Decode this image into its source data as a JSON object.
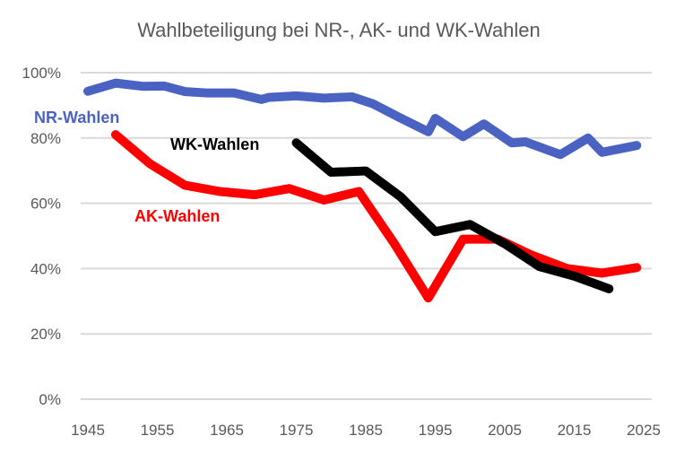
{
  "chart_data": {
    "type": "line",
    "title": "Wahlbeteiligung bei NR-, AK- und WK-Wahlen",
    "xlabel": "",
    "ylabel": "",
    "xlim": [
      1945,
      2025
    ],
    "ylim": [
      0,
      100
    ],
    "x_ticks": [
      "1945",
      "1955",
      "1965",
      "1975",
      "1985",
      "1995",
      "2005",
      "2015",
      "2025"
    ],
    "y_ticks": [
      "0%",
      "20%",
      "40%",
      "60%",
      "80%",
      "100%"
    ],
    "grid": true,
    "series": [
      {
        "name": "NR-Wahlen",
        "color": "#4a62c2",
        "x": [
          1945,
          1949,
          1953,
          1956,
          1959,
          1962,
          1966,
          1970,
          1971,
          1975,
          1979,
          1983,
          1986,
          1990,
          1994,
          1995,
          1999,
          2002,
          2006,
          2008,
          2013,
          2017,
          2019,
          2024
        ],
        "y": [
          94.3,
          96.8,
          95.8,
          95.9,
          94.2,
          93.8,
          93.8,
          91.8,
          92.4,
          92.9,
          92.2,
          92.6,
          90.5,
          86.1,
          81.9,
          86.0,
          80.4,
          84.3,
          78.5,
          78.8,
          74.9,
          80.0,
          75.6,
          77.7
        ]
      },
      {
        "name": "AK-Wahlen",
        "color": "#ff0000",
        "x": [
          1949,
          1954,
          1959,
          1964,
          1969,
          1974,
          1979,
          1984,
          1989,
          1994,
          1999,
          2004,
          2009,
          2014,
          2019,
          2024
        ],
        "y": [
          81.0,
          72.0,
          65.5,
          63.6,
          62.6,
          64.5,
          61.0,
          63.6,
          48.0,
          31.0,
          49.0,
          49.0,
          44.0,
          40.0,
          38.6,
          40.3
        ]
      },
      {
        "name": "WK-Wahlen",
        "color": "#000000",
        "x": [
          1975,
          1980,
          1985,
          1990,
          1995,
          2000,
          2005,
          2010,
          2015,
          2020
        ],
        "y": [
          78.5,
          69.5,
          69.9,
          62.0,
          51.3,
          53.5,
          47.6,
          40.6,
          37.7,
          33.8
        ]
      }
    ]
  }
}
